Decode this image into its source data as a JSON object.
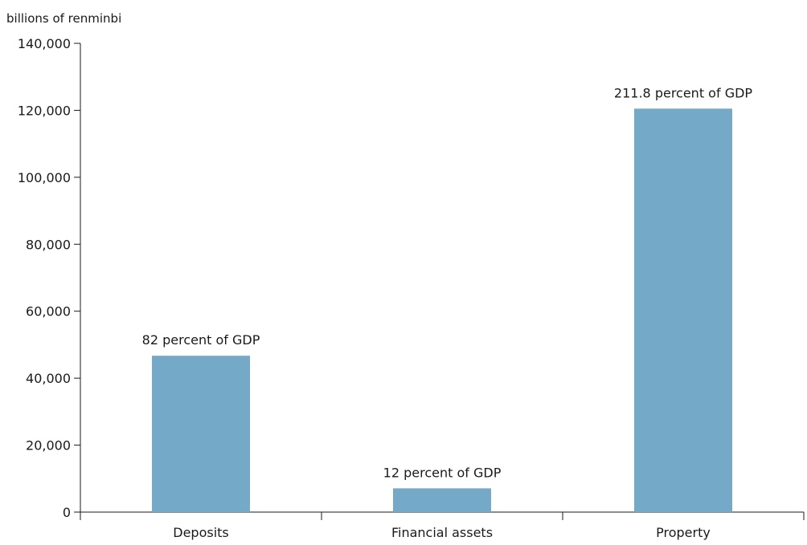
{
  "chart_data": {
    "type": "bar",
    "title": "",
    "ylabel": "billions of renminbi",
    "xlabel": "",
    "categories": [
      "Deposits",
      "Financial assets",
      "Property"
    ],
    "values": [
      46700,
      7100,
      120500
    ],
    "data_labels": [
      "82 percent of GDP",
      "12 percent of GDP",
      "211.8 percent of GDP"
    ],
    "ylim": [
      0,
      140000
    ],
    "yticks": [
      0,
      20000,
      40000,
      60000,
      80000,
      100000,
      120000,
      140000
    ],
    "ytick_labels": [
      "0",
      "20,000",
      "40,000",
      "60,000",
      "80,000",
      "100,000",
      "120,000",
      "140,000"
    ],
    "grid": false,
    "bar_color": "#75a9c8",
    "axis_color": "#1a1a1a"
  }
}
